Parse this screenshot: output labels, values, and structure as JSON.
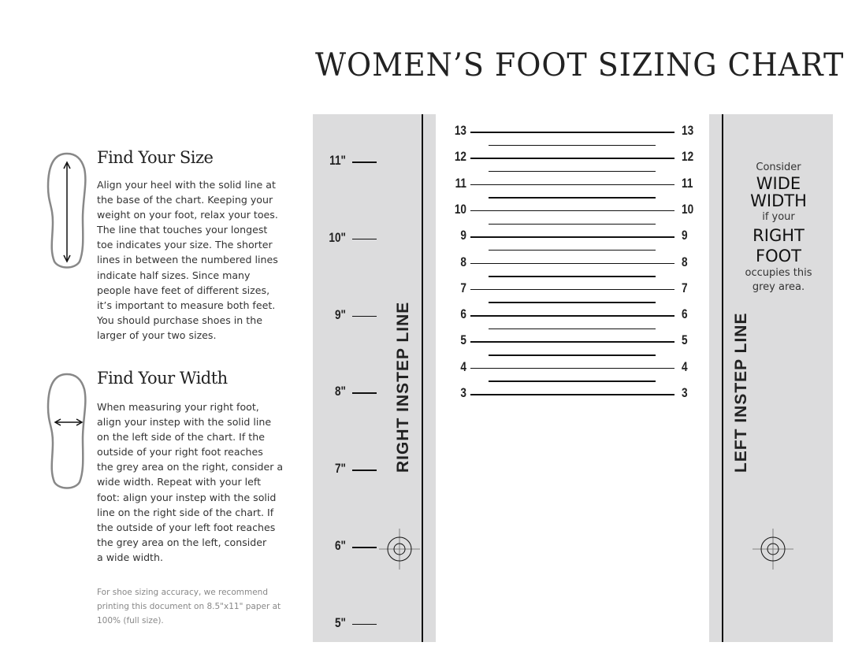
{
  "title": "WOMEN’S FOOT SIZING CHART",
  "size_section": {
    "heading": "Find Your Size",
    "lines": [
      "Align your heel with the solid line at",
      "the base of the chart. Keeping your",
      "weight on your foot, relax your toes.",
      "The line that touches your longest",
      "toe indicates your size. The shorter",
      "lines in between the numbered lines",
      "indicate half sizes. Since many",
      "people have feet of different sizes,",
      "it’s important to measure both feet.",
      "You should purchase shoes in the",
      "larger of your two sizes."
    ]
  },
  "width_section": {
    "heading": "Find Your Width",
    "lines": [
      "When measuring your right foot,",
      "align your instep with the solid line",
      "on the left side of the chart. If the",
      "outside of your right foot reaches",
      "the grey area on the right, consider a",
      "wide width. Repeat with your left",
      "foot: align your instep with the solid",
      "line on the right side of the chart. If",
      "the outside of your left foot reaches",
      "the grey area on the left, consider",
      "a wide width."
    ]
  },
  "note": {
    "lines": [
      "For shoe sizing accuracy, we recommend",
      "printing this document on 8.5\"x11\" paper at",
      "100% (full size)."
    ]
  },
  "inches": [
    "11\"",
    "10\"",
    "9\"",
    "8\"",
    "7\"",
    "6\"",
    "5\""
  ],
  "sizes": [
    "13",
    "12",
    "11",
    "10",
    "9",
    "8",
    "7",
    "6",
    "5",
    "4",
    "3"
  ],
  "right_instep_label": "RIGHT INSTEP LINE",
  "left_instep_label": "LEFT INSTEP LINE",
  "wide_note": {
    "l1": "Consider",
    "l2": "WIDE",
    "l3": "WIDTH",
    "l4": "if your",
    "l5": "RIGHT",
    "l6": "FOOT",
    "l7": "occupies this",
    "l8": "grey area."
  },
  "colors": {
    "grey_area": "#dcdcdd",
    "ink": "#111111"
  }
}
